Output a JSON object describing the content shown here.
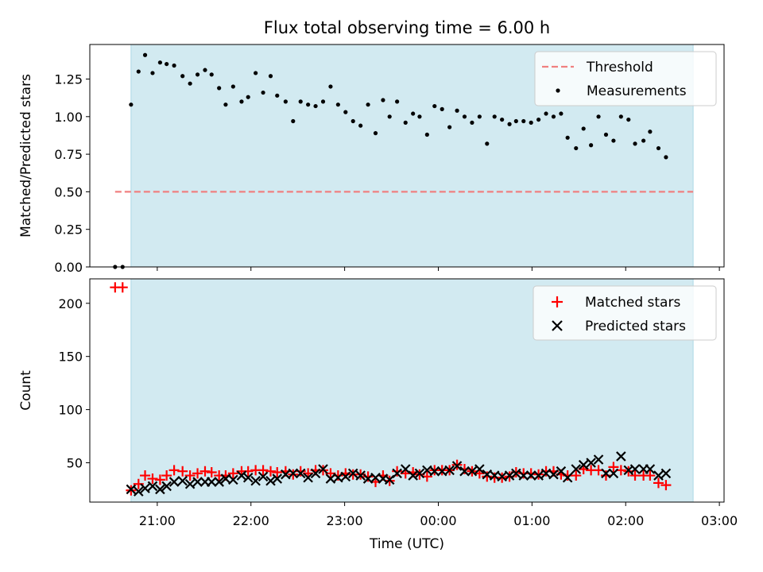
{
  "chart_data": {
    "title": "Flux total observing time = 6.00 h",
    "xlabel": "Time (UTC)",
    "x_unit": "hours after 20:00 UTC (clock display, wraps at 24:00)",
    "x_ticks": [
      {
        "value": 1,
        "label": "21:00"
      },
      {
        "value": 2,
        "label": "22:00"
      },
      {
        "value": 3,
        "label": "23:00"
      },
      {
        "value": 4,
        "label": "00:00"
      },
      {
        "value": 5,
        "label": "01:00"
      },
      {
        "value": 6,
        "label": "02:00"
      },
      {
        "value": 7,
        "label": "03:00"
      }
    ],
    "xlim": [
      0.28,
      7.05
    ],
    "observing_window": [
      0.72,
      6.72
    ],
    "observing_window_color": "#add8e6",
    "panels": [
      {
        "type": "scatter",
        "ylabel": "Matched/Predicted stars",
        "ylim": [
          0,
          1.48
        ],
        "yticks": [
          "0.00",
          "0.25",
          "0.50",
          "0.75",
          "1.00",
          "1.25"
        ],
        "threshold": {
          "label": "Threshold",
          "value": 0.5,
          "x_range": [
            0.55,
            6.72
          ],
          "color": "#f08080",
          "style": "dashed"
        },
        "series": [
          {
            "name": "Measurements",
            "marker": "dot",
            "color": "#000000",
            "points": [
              [
                0.55,
                0.0
              ],
              [
                0.63,
                0.0
              ],
              [
                0.72,
                1.08
              ],
              [
                0.8,
                1.3
              ],
              [
                0.87,
                1.41
              ],
              [
                0.95,
                1.29
              ],
              [
                1.03,
                1.36
              ],
              [
                1.1,
                1.35
              ],
              [
                1.18,
                1.34
              ],
              [
                1.27,
                1.27
              ],
              [
                1.35,
                1.22
              ],
              [
                1.43,
                1.28
              ],
              [
                1.51,
                1.31
              ],
              [
                1.58,
                1.28
              ],
              [
                1.66,
                1.19
              ],
              [
                1.73,
                1.08
              ],
              [
                1.81,
                1.2
              ],
              [
                1.9,
                1.1
              ],
              [
                1.97,
                1.13
              ],
              [
                2.05,
                1.29
              ],
              [
                2.13,
                1.16
              ],
              [
                2.21,
                1.27
              ],
              [
                2.28,
                1.14
              ],
              [
                2.37,
                1.1
              ],
              [
                2.45,
                0.97
              ],
              [
                2.53,
                1.1
              ],
              [
                2.61,
                1.08
              ],
              [
                2.69,
                1.07
              ],
              [
                2.77,
                1.1
              ],
              [
                2.85,
                1.2
              ],
              [
                2.93,
                1.08
              ],
              [
                3.01,
                1.03
              ],
              [
                3.09,
                0.97
              ],
              [
                3.17,
                0.94
              ],
              [
                3.25,
                1.08
              ],
              [
                3.33,
                0.89
              ],
              [
                3.41,
                1.11
              ],
              [
                3.48,
                1.0
              ],
              [
                3.56,
                1.1
              ],
              [
                3.65,
                0.96
              ],
              [
                3.73,
                1.02
              ],
              [
                3.8,
                1.0
              ],
              [
                3.88,
                0.88
              ],
              [
                3.96,
                1.07
              ],
              [
                4.04,
                1.05
              ],
              [
                4.12,
                0.93
              ],
              [
                4.2,
                1.04
              ],
              [
                4.28,
                1.0
              ],
              [
                4.36,
                0.96
              ],
              [
                4.44,
                1.0
              ],
              [
                4.52,
                0.82
              ],
              [
                4.6,
                1.0
              ],
              [
                4.68,
                0.98
              ],
              [
                4.76,
                0.95
              ],
              [
                4.83,
                0.97
              ],
              [
                4.91,
                0.97
              ],
              [
                4.99,
                0.96
              ],
              [
                5.07,
                0.98
              ],
              [
                5.15,
                1.02
              ],
              [
                5.23,
                1.0
              ],
              [
                5.31,
                1.02
              ],
              [
                5.38,
                0.86
              ],
              [
                5.47,
                0.79
              ],
              [
                5.55,
                0.92
              ],
              [
                5.63,
                0.81
              ],
              [
                5.71,
                1.0
              ],
              [
                5.79,
                0.88
              ],
              [
                5.87,
                0.84
              ],
              [
                5.95,
                1.0
              ],
              [
                6.03,
                0.98
              ],
              [
                6.1,
                0.82
              ],
              [
                6.19,
                0.84
              ],
              [
                6.26,
                0.9
              ],
              [
                6.35,
                0.79
              ],
              [
                6.43,
                0.73
              ]
            ]
          }
        ],
        "legend": {
          "position": "upper right",
          "entries": [
            "Threshold",
            "Measurements"
          ]
        }
      },
      {
        "type": "scatter",
        "ylabel": "Count",
        "ylim": [
          13,
          223
        ],
        "yticks": [
          "50",
          "100",
          "150",
          "200"
        ],
        "series": [
          {
            "name": "Matched stars",
            "marker": "plus",
            "color": "#ff0000",
            "points": [
              [
                0.55,
                215
              ],
              [
                0.63,
                215
              ],
              [
                0.72,
                24
              ],
              [
                0.8,
                30
              ],
              [
                0.87,
                38
              ],
              [
                0.95,
                35
              ],
              [
                1.03,
                34
              ],
              [
                1.1,
                38
              ],
              [
                1.18,
                43
              ],
              [
                1.27,
                42
              ],
              [
                1.35,
                38
              ],
              [
                1.43,
                40
              ],
              [
                1.51,
                42
              ],
              [
                1.58,
                41
              ],
              [
                1.66,
                38
              ],
              [
                1.73,
                38
              ],
              [
                1.81,
                40
              ],
              [
                1.9,
                42
              ],
              [
                1.97,
                42
              ],
              [
                2.05,
                43
              ],
              [
                2.13,
                43
              ],
              [
                2.21,
                42
              ],
              [
                2.28,
                41
              ],
              [
                2.37,
                42
              ],
              [
                2.45,
                39
              ],
              [
                2.53,
                42
              ],
              [
                2.61,
                40
              ],
              [
                2.69,
                43
              ],
              [
                2.77,
                43
              ],
              [
                2.85,
                40
              ],
              [
                2.93,
                38
              ],
              [
                3.01,
                40
              ],
              [
                3.09,
                39
              ],
              [
                3.17,
                39
              ],
              [
                3.25,
                37
              ],
              [
                3.33,
                32
              ],
              [
                3.41,
                38
              ],
              [
                3.48,
                33
              ],
              [
                3.56,
                42
              ],
              [
                3.65,
                40
              ],
              [
                3.73,
                41
              ],
              [
                3.8,
                39
              ],
              [
                3.88,
                37
              ],
              [
                3.96,
                43
              ],
              [
                4.04,
                43
              ],
              [
                4.12,
                43
              ],
              [
                4.2,
                48
              ],
              [
                4.28,
                44
              ],
              [
                4.36,
                42
              ],
              [
                4.44,
                40
              ],
              [
                4.52,
                37
              ],
              [
                4.6,
                36
              ],
              [
                4.68,
                36
              ],
              [
                4.76,
                37
              ],
              [
                4.83,
                41
              ],
              [
                4.91,
                40
              ],
              [
                4.99,
                40
              ],
              [
                5.07,
                39
              ],
              [
                5.15,
                42
              ],
              [
                5.23,
                42
              ],
              [
                5.31,
                39
              ],
              [
                5.38,
                38
              ],
              [
                5.47,
                38
              ],
              [
                5.55,
                44
              ],
              [
                5.63,
                43
              ],
              [
                5.71,
                43
              ],
              [
                5.79,
                38
              ],
              [
                5.87,
                46
              ],
              [
                5.95,
                43
              ],
              [
                6.03,
                42
              ],
              [
                6.1,
                38
              ],
              [
                6.19,
                38
              ],
              [
                6.26,
                38
              ],
              [
                6.35,
                31
              ],
              [
                6.43,
                29
              ]
            ]
          },
          {
            "name": "Predicted stars",
            "marker": "x",
            "color": "#000000",
            "points": [
              [
                0.72,
                25
              ],
              [
                0.8,
                23
              ],
              [
                0.87,
                26
              ],
              [
                0.95,
                28
              ],
              [
                1.03,
                25
              ],
              [
                1.1,
                28
              ],
              [
                1.18,
                32
              ],
              [
                1.27,
                33
              ],
              [
                1.35,
                30
              ],
              [
                1.43,
                32
              ],
              [
                1.51,
                32
              ],
              [
                1.58,
                32
              ],
              [
                1.66,
                32
              ],
              [
                1.73,
                35
              ],
              [
                1.81,
                34
              ],
              [
                1.9,
                38
              ],
              [
                1.97,
                36
              ],
              [
                2.05,
                33
              ],
              [
                2.13,
                37
              ],
              [
                2.21,
                33
              ],
              [
                2.28,
                35
              ],
              [
                2.37,
                39
              ],
              [
                2.45,
                40
              ],
              [
                2.53,
                40
              ],
              [
                2.61,
                36
              ],
              [
                2.69,
                40
              ],
              [
                2.77,
                44
              ],
              [
                2.85,
                35
              ],
              [
                2.93,
                36
              ],
              [
                3.01,
                37
              ],
              [
                3.09,
                40
              ],
              [
                3.17,
                38
              ],
              [
                3.25,
                35
              ],
              [
                3.33,
                36
              ],
              [
                3.41,
                35
              ],
              [
                3.48,
                34
              ],
              [
                3.56,
                40
              ],
              [
                3.65,
                44
              ],
              [
                3.73,
                38
              ],
              [
                3.8,
                40
              ],
              [
                3.88,
                43
              ],
              [
                3.96,
                42
              ],
              [
                4.04,
                42
              ],
              [
                4.12,
                43
              ],
              [
                4.2,
                47
              ],
              [
                4.28,
                42
              ],
              [
                4.36,
                42
              ],
              [
                4.44,
                44
              ],
              [
                4.52,
                39
              ],
              [
                4.6,
                38
              ],
              [
                4.68,
                37
              ],
              [
                4.76,
                38
              ],
              [
                4.83,
                40
              ],
              [
                4.91,
                38
              ],
              [
                4.99,
                38
              ],
              [
                5.07,
                38
              ],
              [
                5.15,
                40
              ],
              [
                5.23,
                39
              ],
              [
                5.31,
                42
              ],
              [
                5.38,
                36
              ],
              [
                5.47,
                44
              ],
              [
                5.55,
                48
              ],
              [
                5.63,
                50
              ],
              [
                5.71,
                53
              ],
              [
                5.79,
                40
              ],
              [
                5.87,
                40
              ],
              [
                5.95,
                56
              ],
              [
                6.03,
                43
              ],
              [
                6.1,
                44
              ],
              [
                6.19,
                44
              ],
              [
                6.26,
                44
              ],
              [
                6.35,
                38
              ],
              [
                6.43,
                40
              ]
            ]
          }
        ],
        "legend": {
          "position": "upper right",
          "entries": [
            "Matched stars",
            "Predicted stars"
          ]
        }
      }
    ]
  }
}
